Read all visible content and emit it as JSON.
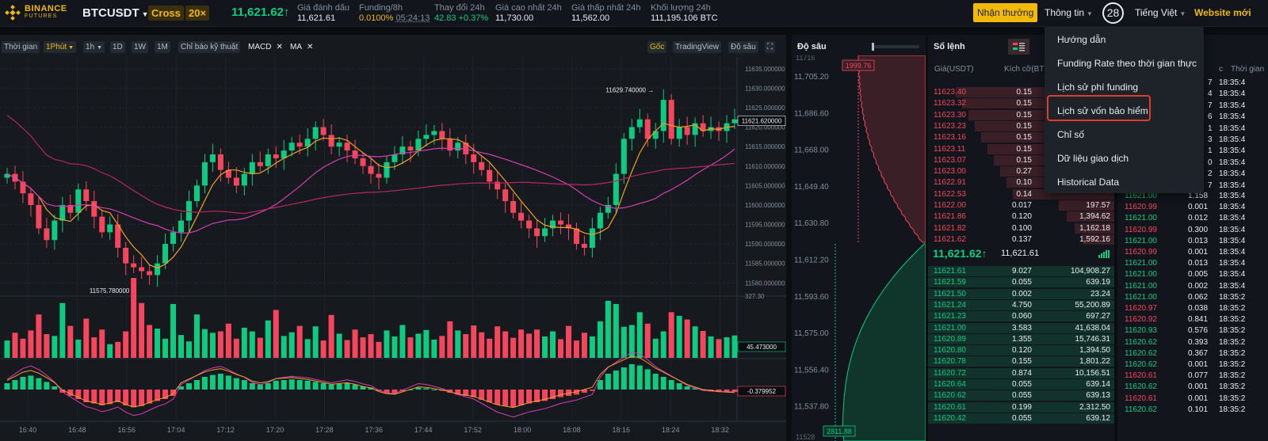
{
  "header": {
    "logo_line1": "BINANCE",
    "logo_line2": "FUTURES",
    "symbol": "BTCUSDT",
    "margin_mode": "Cross",
    "leverage": "20×",
    "last_price": "11,621.62↑",
    "stats": [
      {
        "label": "Giá đánh dấu",
        "value": "11,621.61"
      },
      {
        "label": "Funding/8h",
        "value": "0.0100%",
        "value2": "05:24:13"
      },
      {
        "label": "Thay đổi 24h",
        "value": "42.83 +0.37%"
      },
      {
        "label": "Giá cao nhất 24h",
        "value": "11,730.00"
      },
      {
        "label": "Giá thấp nhất 24h",
        "value": "11,562.00"
      },
      {
        "label": "Khối lượng 24h",
        "value": "111,195.106 BTC"
      }
    ],
    "reward_button": "Nhận thưởng",
    "info_menu": "Thông tin",
    "notification_count": "28",
    "language": "Tiếng Việt",
    "website_link": "Website mới"
  },
  "chart_toolbar": {
    "time_label": "Thời gian",
    "interval_selected": "1Phút",
    "interval_1h": "1h",
    "interval_1d": "1D",
    "interval_1w": "1W",
    "interval_1m": "1M",
    "indicators": "Chỉ báo kỹ thuật",
    "macd_tag": "MACD",
    "ma_tag": "MA",
    "view_original": "Gốc",
    "view_tradingview": "TradingView",
    "view_depth": "Độ sâu"
  },
  "chart_data": {
    "type": "candlestick",
    "x_ticks": [
      "16:40",
      "16:48",
      "16:56",
      "17:04",
      "17:12",
      "17:20",
      "17:28",
      "17:36",
      "17:44",
      "17:52",
      "18:00",
      "18:08",
      "18:16",
      "18:24",
      "18:32"
    ],
    "y_ticks": [
      "11635.000000",
      "11630.000000",
      "11625.000000",
      "11620.000000",
      "11615.000000",
      "11610.000000",
      "11605.000000",
      "11600.000000",
      "11595.000000",
      "11590.000000",
      "11585.000000",
      "11580.000000"
    ],
    "ylim": [
      11577,
      11637
    ],
    "high_annotation": "11629.740000",
    "high_value": 11629.74,
    "low_annotation": "11575.780000",
    "low_value": 11575.78,
    "current_price_label": "11621.620000",
    "current_price": 11621.62,
    "volume_max_label": "327.30",
    "volume_current_label": "45.473000",
    "macd_label": "-0.379952",
    "colors": {
      "up": "#0ecb81",
      "down": "#f6465d",
      "ma_fast": "#f0a028",
      "ma_slow": "#d63cb4",
      "ma_long": "#b82763"
    },
    "closes": [
      11608,
      11606,
      11603,
      11600,
      11594,
      11591,
      11596,
      11600,
      11598,
      11604,
      11601,
      11597,
      11593,
      11595,
      11589,
      11585,
      11584,
      11583,
      11582,
      11585,
      11590,
      11593,
      11596,
      11601,
      11605,
      11611,
      11613,
      11609,
      11607,
      11605,
      11608,
      11611,
      11610,
      11613,
      11612,
      11614,
      11616,
      11615,
      11617,
      11620,
      11618,
      11615,
      11616,
      11614,
      11612,
      11610,
      11608,
      11607,
      11611,
      11613,
      11615,
      11614,
      11617,
      11618,
      11619,
      11617,
      11614,
      11616,
      11613,
      11611,
      11609,
      11606,
      11604,
      11601,
      11598,
      11596,
      11594,
      11592,
      11594,
      11596,
      11595,
      11594,
      11590,
      11589,
      11594,
      11598,
      11600,
      11608,
      11617,
      11620,
      11622,
      11617,
      11619,
      11627,
      11617,
      11620,
      11618,
      11621,
      11619,
      11620,
      11619,
      11621,
      11622
    ],
    "volumes": [
      38,
      55,
      42,
      60,
      95,
      52,
      48,
      120,
      70,
      40,
      86,
      45,
      62,
      30,
      35,
      58,
      175,
      120,
      72,
      64,
      42,
      118,
      50,
      36,
      95,
      63,
      55,
      58,
      75,
      42,
      66,
      58,
      44,
      82,
      105,
      48,
      56,
      70,
      41,
      69,
      38,
      94,
      53,
      39,
      62,
      45,
      52,
      35,
      60,
      47,
      72,
      45,
      53,
      61,
      40,
      48,
      80,
      60,
      52,
      71,
      56,
      42,
      69,
      58,
      44,
      62,
      53,
      62,
      47,
      58,
      41,
      70,
      38,
      55,
      47,
      80,
      125,
      118,
      68,
      72,
      100,
      75,
      42,
      58,
      100,
      92,
      84,
      69,
      59,
      47,
      41,
      45,
      49
    ],
    "macd": [
      1,
      1.5,
      2,
      2.2,
      1.8,
      1.2,
      0.5,
      -0.5,
      -1,
      -1.5,
      -2,
      -2.2,
      -2.5,
      -2.3,
      -2,
      -2.5,
      -2.8,
      -2.6,
      -2.2,
      -1.8,
      -1.5,
      -1,
      0.5,
      1,
      1.5,
      2,
      2.3,
      2.5,
      2.2,
      1.8,
      1.5,
      1,
      0.8,
      1,
      1.4,
      1.5,
      1.6,
      1.5,
      1.4,
      1.2,
      1,
      0.8,
      0.9,
      1,
      0.8,
      0.5,
      0.3,
      -0.2,
      -0.5,
      -0.6,
      -0.3,
      0,
      0.3,
      0.2,
      0,
      -0.2,
      -0.5,
      -0.8,
      -1,
      -1.2,
      -1.6,
      -2,
      -2.4,
      -2.6,
      -2.8,
      -2.5,
      -2.2,
      -2,
      -1.8,
      -1.5,
      -1.2,
      -1,
      -0.8,
      -0.5,
      -0.2,
      1.5,
      2.5,
      3,
      3.5,
      4,
      3.8,
      3.2,
      2.5,
      2,
      1.5,
      1,
      0.5,
      0.2,
      -0.1,
      -0.2,
      -0.3,
      -0.35,
      -0.38
    ]
  },
  "depth_panel": {
    "title": "Độ sâu",
    "price_ticks": [
      "11,705.20",
      "11,686.60",
      "11,668.00",
      "11,649.40",
      "11,630.80",
      "11,612.20",
      "11,593.60",
      "11,575.00",
      "11,556.40",
      "11,537.80"
    ],
    "ask_max_label": "1999.76",
    "bid_max_label": "2811.88",
    "partial_top_label": "11716",
    "partial_bottom_label": "11528"
  },
  "orderbook": {
    "title": "Sổ lệnh",
    "col_price": "Giá(USDT)",
    "col_size": "Kích cỡ(BTC)",
    "asks": [
      {
        "p": "11623.40",
        "s": "0.15",
        "t": ""
      },
      {
        "p": "11623.32",
        "s": "0.15",
        "t": ""
      },
      {
        "p": "11623.30",
        "s": "0.15",
        "t": ""
      },
      {
        "p": "11623.23",
        "s": "0.15",
        "t": ""
      },
      {
        "p": "11623.16",
        "s": "0.15",
        "t": ""
      },
      {
        "p": "11623.11",
        "s": "0.15",
        "t": ""
      },
      {
        "p": "11623.07",
        "s": "0.15",
        "t": ""
      },
      {
        "p": "11623.00",
        "s": "0.27",
        "t": ""
      },
      {
        "p": "11622.91",
        "s": "0.10",
        "t": ""
      },
      {
        "p": "11622.53",
        "s": "0.14",
        "t": ""
      },
      {
        "p": "11622.00",
        "s": "0.017",
        "t": "197.57"
      },
      {
        "p": "11621.86",
        "s": "0.120",
        "t": "1,394.62"
      },
      {
        "p": "11621.82",
        "s": "0.100",
        "t": "1,162.18"
      },
      {
        "p": "11621.62",
        "s": "0.137",
        "t": "1,592.16"
      }
    ],
    "mid_price": "11,621.62↑",
    "mark_price": "11,621.61",
    "bids": [
      {
        "p": "11621.61",
        "s": "9.027",
        "t": "104,908.27"
      },
      {
        "p": "11621.59",
        "s": "0.055",
        "t": "639.19"
      },
      {
        "p": "11621.50",
        "s": "0.002",
        "t": "23.24"
      },
      {
        "p": "11621.24",
        "s": "4.750",
        "t": "55,200.89"
      },
      {
        "p": "11621.23",
        "s": "0.060",
        "t": "697.27"
      },
      {
        "p": "11621.00",
        "s": "3.583",
        "t": "41,638.04"
      },
      {
        "p": "11620.89",
        "s": "1.355",
        "t": "15,746.31"
      },
      {
        "p": "11620.80",
        "s": "0.120",
        "t": "1,394.50"
      },
      {
        "p": "11620.78",
        "s": "0.155",
        "t": "1,801.22"
      },
      {
        "p": "11620.72",
        "s": "0.874",
        "t": "10,156.51"
      },
      {
        "p": "11620.64",
        "s": "0.055",
        "t": "639.14"
      },
      {
        "p": "11620.62",
        "s": "0.055",
        "t": "639.13"
      },
      {
        "p": "11620.61",
        "s": "0.199",
        "t": "2,312.50"
      },
      {
        "p": "11620.42",
        "s": "0.055",
        "t": "639.12"
      }
    ]
  },
  "trades": {
    "col_time_partial": "Thời gian",
    "col_size_partial": "c",
    "hidden_rows": [
      {
        "s": "7",
        "t": "18:35:4"
      },
      {
        "s": "4",
        "t": "18:35:4"
      },
      {
        "s": "7",
        "t": "18:35:4"
      },
      {
        "s": "6",
        "t": "18:35:4"
      },
      {
        "s": "1",
        "t": "18:35:4"
      },
      {
        "s": "3",
        "t": "18:35:4"
      },
      {
        "s": "1",
        "t": "18:35:4"
      },
      {
        "s": "0",
        "t": "18:35:4"
      },
      {
        "s": "2",
        "t": "18:35:4"
      },
      {
        "s": "7",
        "t": "18:35:4"
      }
    ],
    "rows": [
      {
        "p": "11621.00",
        "s": "1.158",
        "t": "18:35:4",
        "side": "buy"
      },
      {
        "p": "11620.99",
        "s": "0.001",
        "t": "18:35:4",
        "side": "sell"
      },
      {
        "p": "11621.00",
        "s": "0.012",
        "t": "18:35:4",
        "side": "buy"
      },
      {
        "p": "11620.99",
        "s": "0.300",
        "t": "18:35:4",
        "side": "sell"
      },
      {
        "p": "11621.00",
        "s": "0.013",
        "t": "18:35:4",
        "side": "buy"
      },
      {
        "p": "11620.99",
        "s": "0.001",
        "t": "18:35:4",
        "side": "sell"
      },
      {
        "p": "11621.00",
        "s": "0.013",
        "t": "18:35:4",
        "side": "buy"
      },
      {
        "p": "11621.00",
        "s": "0.005",
        "t": "18:35:4",
        "side": "buy"
      },
      {
        "p": "11621.00",
        "s": "0.002",
        "t": "18:35:4",
        "side": "buy"
      },
      {
        "p": "11621.00",
        "s": "0.062",
        "t": "18:35:2",
        "side": "buy"
      },
      {
        "p": "11620.97",
        "s": "0.038",
        "t": "18:35:2",
        "side": "sell"
      },
      {
        "p": "11620.92",
        "s": "0.841",
        "t": "18:35:2",
        "side": "sell"
      },
      {
        "p": "11620.93",
        "s": "0.576",
        "t": "18:35:2",
        "side": "buy"
      },
      {
        "p": "11620.62",
        "s": "0.393",
        "t": "18:35:2",
        "side": "buy"
      },
      {
        "p": "11620.62",
        "s": "0.367",
        "t": "18:35:2",
        "side": "buy"
      },
      {
        "p": "11620.62",
        "s": "0.001",
        "t": "18:35:2",
        "side": "buy"
      },
      {
        "p": "11620.61",
        "s": "0.077",
        "t": "18:35:2",
        "side": "sell"
      },
      {
        "p": "11620.62",
        "s": "0.001",
        "t": "18:35:2",
        "side": "buy"
      },
      {
        "p": "11620.61",
        "s": "0.001",
        "t": "18:35:2",
        "side": "sell"
      },
      {
        "p": "11620.62",
        "s": "0.101",
        "t": "18:35:2",
        "side": "buy"
      }
    ]
  },
  "info_dropdown": {
    "items": [
      "Hướng dẫn",
      "Funding Rate theo thời gian thực",
      "Lịch sử phí funding",
      "Lịch sử vốn bảo hiểm",
      "Chỉ số",
      "Dữ liệu giao dịch",
      "Historical Data"
    ],
    "highlighted_index": 3
  }
}
